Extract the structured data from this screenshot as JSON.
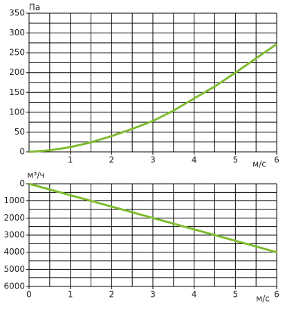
{
  "chart_data": [
    {
      "type": "line",
      "y_label": "Па",
      "x_label": "м/с",
      "x": [
        0,
        0.5,
        1,
        1.5,
        2,
        2.5,
        3,
        3.5,
        4,
        4.5,
        5,
        5.5,
        6
      ],
      "series": [
        {
          "color": "#7dbb2e",
          "values": [
            0,
            4,
            12,
            24,
            40,
            58,
            78,
            104,
            135,
            165,
            200,
            236,
            272
          ]
        }
      ],
      "xlim": [
        0,
        6
      ],
      "ylim": [
        0,
        350
      ],
      "xticks": [
        1,
        2,
        3,
        4,
        5,
        6
      ],
      "yticks": [
        0,
        50,
        100,
        150,
        200,
        250,
        300,
        350
      ],
      "minor_xticks": [
        0.5,
        1.5,
        2.5,
        3.5,
        4.5,
        5.5
      ],
      "minor_yticks": [
        25,
        75,
        125,
        175,
        225,
        275,
        325
      ],
      "grid": true
    },
    {
      "type": "line",
      "y_label": "м³/ч",
      "x_label": "м/с",
      "x": [
        0,
        6
      ],
      "series": [
        {
          "color": "#7dbb2e",
          "values": [
            0,
            4000
          ]
        }
      ],
      "xlim": [
        0,
        6
      ],
      "ylim": [
        6000,
        0
      ],
      "xticks": [
        0,
        1,
        2,
        3,
        4,
        5,
        6
      ],
      "yticks": [
        0,
        1000,
        2000,
        3000,
        4000,
        5000,
        6000
      ],
      "minor_xticks": [
        0.5,
        1.5,
        2.5,
        3.5,
        4.5,
        5.5
      ],
      "minor_yticks": [
        500,
        1500,
        2500,
        3500,
        4500,
        5500
      ],
      "grid": true
    }
  ]
}
